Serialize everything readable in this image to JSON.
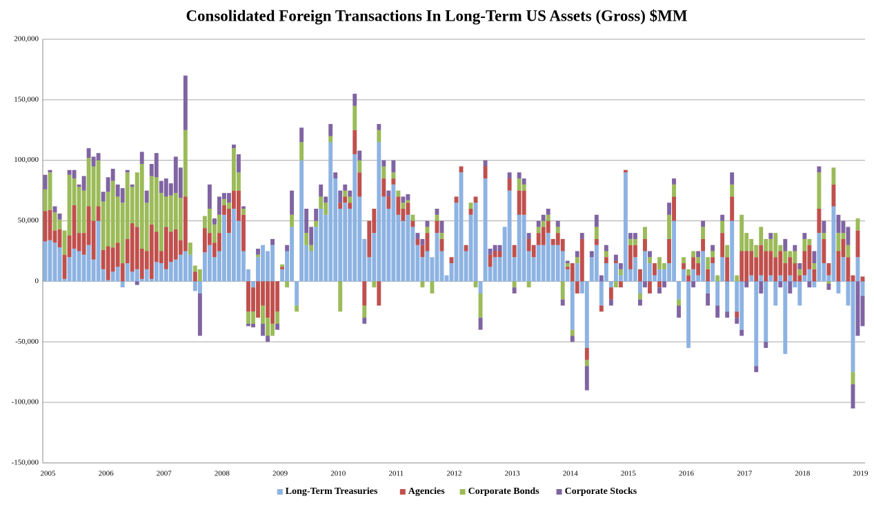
{
  "chart_data": {
    "type": "bar",
    "stacked": true,
    "title": "Consolidated Foreign Transactions In Long-Term US Assets (Gross) $MM",
    "grid": true,
    "legend": "bottom",
    "ylim": [
      -150000,
      200000
    ],
    "yticks": [
      {
        "value": -150000,
        "label": "-150,000"
      },
      {
        "value": -100000,
        "label": "-100,000"
      },
      {
        "value": -50000,
        "label": "-50,000"
      },
      0,
      {
        "value": 50000,
        "label": "50,000"
      },
      {
        "value": 100000,
        "label": "100,000"
      },
      {
        "value": 150000,
        "label": "150,000"
      },
      {
        "value": 200000,
        "label": "200,000"
      }
    ],
    "categories": [
      "2005",
      null,
      null,
      null,
      null,
      null,
      null,
      null,
      null,
      null,
      null,
      null,
      "2006",
      null,
      null,
      null,
      null,
      null,
      null,
      null,
      null,
      null,
      null,
      null,
      "2007",
      null,
      null,
      null,
      null,
      null,
      null,
      null,
      null,
      null,
      null,
      null,
      "2008",
      null,
      null,
      null,
      null,
      null,
      null,
      null,
      null,
      null,
      null,
      null,
      "2009",
      null,
      null,
      null,
      null,
      null,
      null,
      null,
      null,
      null,
      null,
      null,
      "2010",
      null,
      null,
      null,
      null,
      null,
      null,
      null,
      null,
      null,
      null,
      null,
      "2011",
      null,
      null,
      null,
      null,
      null,
      null,
      null,
      null,
      null,
      null,
      null,
      "2012",
      null,
      null,
      null,
      null,
      null,
      null,
      null,
      null,
      null,
      null,
      null,
      "2013",
      null,
      null,
      null,
      null,
      null,
      null,
      null,
      null,
      null,
      null,
      null,
      "2014",
      null,
      null,
      null,
      null,
      null,
      null,
      null,
      null,
      null,
      null,
      null,
      "2015",
      null,
      null,
      null,
      null,
      null,
      null,
      null,
      null,
      null,
      null,
      null,
      "2016",
      null,
      null,
      null,
      null,
      null,
      null,
      null,
      null,
      null,
      null,
      null,
      "2017",
      null,
      null,
      null,
      null,
      null,
      null,
      null,
      null,
      null,
      null,
      null,
      "2018",
      null,
      null,
      null,
      null,
      null,
      null,
      null,
      null,
      null,
      null,
      null,
      "2019",
      null
    ],
    "series": [
      {
        "name": "Long-Term Treasuries",
        "color": "#8db3e2",
        "values": [
          33000,
          34000,
          32000,
          28000,
          2000,
          20000,
          27000,
          25000,
          22000,
          30000,
          18000,
          50000,
          10000,
          1000,
          8000,
          12000,
          -5000,
          15000,
          8000,
          10000,
          2000,
          10000,
          2000,
          16000,
          15000,
          10000,
          16000,
          18000,
          22000,
          25000,
          22000,
          -8000,
          -10000,
          24000,
          30000,
          20000,
          25000,
          55000,
          40000,
          60000,
          50000,
          25000,
          10000,
          -5000,
          20000,
          30000,
          25000,
          30000,
          0,
          10000,
          25000,
          45000,
          -20000,
          100000,
          30000,
          25000,
          45000,
          60000,
          55000,
          115000,
          85000,
          60000,
          65000,
          60000,
          105000,
          70000,
          35000,
          20000,
          40000,
          115000,
          70000,
          60000,
          80000,
          55000,
          50000,
          55000,
          45000,
          30000,
          20000,
          25000,
          20000,
          40000,
          25000,
          5000,
          15000,
          65000,
          90000,
          25000,
          55000,
          65000,
          -10000,
          85000,
          12000,
          20000,
          20000,
          45000,
          75000,
          20000,
          55000,
          55000,
          25000,
          20000,
          30000,
          30000,
          40000,
          30000,
          30000,
          25000,
          10000,
          -40000,
          15000,
          -10000,
          -55000,
          20000,
          30000,
          -20000,
          15000,
          -5000,
          15000,
          5000,
          90000,
          10000,
          20000,
          -10000,
          25000,
          15000,
          5000,
          10000,
          10000,
          15000,
          50000,
          -15000,
          10000,
          -55000,
          10000,
          5000,
          25000,
          -10000,
          15000,
          -20000,
          20000,
          -25000,
          50000,
          -25000,
          -40000,
          0,
          5000,
          -70000,
          5000,
          -50000,
          5000,
          -20000,
          5000,
          -60000,
          5000,
          -5000,
          -20000,
          5000,
          10000,
          -5000,
          40000,
          15000,
          5000,
          62000,
          -10000,
          20000,
          -20000,
          -75000,
          20000,
          -12000
        ]
      },
      {
        "name": "Agencies",
        "color": "#c0504d",
        "values": [
          25000,
          25000,
          10000,
          15000,
          20000,
          18000,
          36000,
          15000,
          18000,
          32000,
          32000,
          12000,
          16000,
          28000,
          20000,
          20000,
          15000,
          20000,
          40000,
          35000,
          25000,
          15000,
          45000,
          25000,
          10000,
          35000,
          25000,
          25000,
          12000,
          45000,
          0,
          8000,
          0,
          20000,
          10000,
          12000,
          15000,
          8000,
          20000,
          15000,
          25000,
          30000,
          -25000,
          -20000,
          -30000,
          -20000,
          -30000,
          -35000,
          -25000,
          2000,
          0,
          0,
          0,
          0,
          0,
          0,
          0,
          0,
          0,
          0,
          0,
          5000,
          5000,
          5000,
          20000,
          20000,
          -20000,
          30000,
          20000,
          -20000,
          15000,
          10000,
          5000,
          15000,
          10000,
          10000,
          5000,
          5000,
          10000,
          15000,
          0,
          10000,
          10000,
          0,
          5000,
          5000,
          5000,
          5000,
          5000,
          5000,
          0,
          10000,
          10000,
          5000,
          5000,
          0,
          10000,
          10000,
          20000,
          20000,
          10000,
          10000,
          10000,
          15000,
          10000,
          5000,
          10000,
          10000,
          2000,
          15000,
          -10000,
          35000,
          -10000,
          0,
          5000,
          -5000,
          5000,
          -10000,
          2000,
          -5000,
          2000,
          20000,
          10000,
          10000,
          10000,
          -10000,
          10000,
          -5000,
          0,
          20000,
          20000,
          0,
          5000,
          5000,
          10000,
          10000,
          10000,
          10000,
          5000,
          0,
          20000,
          20000,
          20000,
          -5000,
          25000,
          25000,
          20000,
          20000,
          25000,
          25000,
          20000,
          20000,
          20000,
          15000,
          15000,
          15000,
          5000,
          20000,
          20000,
          10000,
          20000,
          20000,
          10000,
          18000,
          25000,
          15000,
          20000,
          5000,
          22000,
          4000
        ]
      },
      {
        "name": "Corporate Bonds",
        "color": "#9bbb59",
        "values": [
          18000,
          31000,
          15000,
          8000,
          20000,
          50000,
          22000,
          38000,
          35000,
          40000,
          45000,
          38000,
          40000,
          45000,
          55000,
          38000,
          50000,
          55000,
          30000,
          45000,
          70000,
          40000,
          40000,
          45000,
          48000,
          25000,
          30000,
          30000,
          35000,
          55000,
          10000,
          5000,
          10000,
          10000,
          20000,
          15000,
          15000,
          5000,
          5000,
          35000,
          15000,
          5000,
          -10000,
          -10000,
          2000,
          -15000,
          -15000,
          -10000,
          -10000,
          2000,
          -5000,
          10000,
          -5000,
          15000,
          10000,
          5000,
          5000,
          10000,
          10000,
          5000,
          0,
          -25000,
          5000,
          5000,
          20000,
          10000,
          -10000,
          0,
          -5000,
          10000,
          10000,
          0,
          5000,
          5000,
          5000,
          2000,
          5000,
          0,
          -5000,
          5000,
          -10000,
          5000,
          5000,
          0,
          0,
          0,
          0,
          0,
          5000,
          -5000,
          -20000,
          0,
          0,
          0,
          0,
          0,
          0,
          -5000,
          10000,
          5000,
          -5000,
          0,
          5000,
          5000,
          5000,
          0,
          5000,
          -15000,
          3000,
          -5000,
          5000,
          0,
          -5000,
          0,
          10000,
          0,
          5000,
          0,
          -5000,
          5000,
          0,
          5000,
          5000,
          -5000,
          10000,
          5000,
          0,
          10000,
          5000,
          20000,
          10000,
          -5000,
          5000,
          5000,
          5000,
          5000,
          10000,
          10000,
          5000,
          5000,
          10000,
          10000,
          10000,
          5000,
          30000,
          15000,
          10000,
          10000,
          15000,
          10000,
          10000,
          20000,
          5000,
          10000,
          5000,
          10000,
          5000,
          10000,
          5000,
          5000,
          30000,
          5000,
          -2000,
          14000,
          15000,
          5000,
          10000,
          -10000,
          10000,
          0
        ]
      },
      {
        "name": "Corporate Stocks",
        "color": "#8064a2",
        "values": [
          12000,
          2000,
          5000,
          5000,
          0,
          4000,
          7000,
          2000,
          12000,
          8000,
          8000,
          6000,
          8000,
          12000,
          10000,
          10000,
          12000,
          2000,
          2000,
          -3000,
          10000,
          10000,
          10000,
          20000,
          10000,
          15000,
          10000,
          30000,
          25000,
          45000,
          0,
          0,
          -35000,
          0,
          20000,
          5000,
          15000,
          5000,
          8000,
          3000,
          15000,
          2000,
          -2000,
          -3000,
          5000,
          -10000,
          -5000,
          5000,
          -5000,
          0,
          5000,
          20000,
          0,
          12000,
          20000,
          15000,
          10000,
          10000,
          5000,
          10000,
          5000,
          10000,
          5000,
          5000,
          10000,
          8000,
          -5000,
          0,
          0,
          5000,
          5000,
          5000,
          10000,
          0,
          5000,
          5000,
          0,
          5000,
          5000,
          5000,
          0,
          5000,
          10000,
          0,
          0,
          0,
          0,
          0,
          0,
          0,
          -10000,
          5000,
          5000,
          5000,
          5000,
          0,
          5000,
          -5000,
          5000,
          5000,
          5000,
          0,
          5000,
          5000,
          5000,
          0,
          5000,
          -5000,
          2000,
          -5000,
          5000,
          5000,
          -20000,
          5000,
          10000,
          5000,
          5000,
          -5000,
          5000,
          5000,
          0,
          5000,
          5000,
          -5000,
          -5000,
          5000,
          0,
          -5000,
          -5000,
          10000,
          5000,
          -10000,
          0,
          0,
          -5000,
          5000,
          5000,
          -10000,
          5000,
          -10000,
          5000,
          -5000,
          10000,
          -5000,
          -5000,
          -5000,
          0,
          -5000,
          -10000,
          -5000,
          5000,
          0,
          -5000,
          10000,
          -10000,
          5000,
          5000,
          5000,
          -5000,
          10000,
          5000,
          10000,
          -5000,
          0,
          15000,
          10000,
          15000,
          -20000,
          -45000,
          -25000
        ]
      }
    ]
  }
}
